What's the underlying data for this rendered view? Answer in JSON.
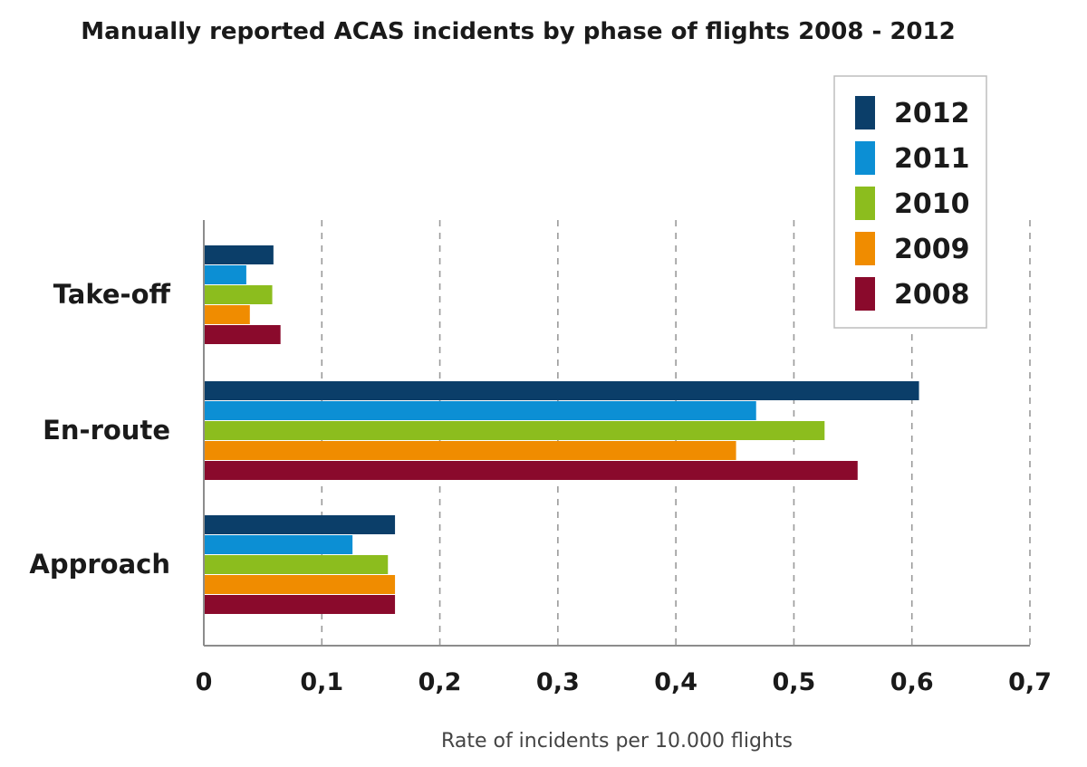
{
  "chart_data": {
    "type": "bar",
    "orientation": "horizontal",
    "title": "Manually reported ACAS incidents by phase of flights 2008 - 2012",
    "xlabel": "Rate of incidents per 10.000 flights",
    "ylabel": "",
    "xlim": [
      0,
      0.7
    ],
    "x_ticks": [
      "0",
      "0,1",
      "0,2",
      "0,3",
      "0,4",
      "0,5",
      "0,6",
      "0,7"
    ],
    "x_tick_values": [
      0,
      0.1,
      0.2,
      0.3,
      0.4,
      0.5,
      0.6,
      0.7
    ],
    "grid": "vertical dashed",
    "legend_position": "top-right",
    "categories": [
      "Take-off",
      "En-route",
      "Approach"
    ],
    "series": [
      {
        "name": "2012",
        "color": "#0b3e69",
        "values": [
          0.059,
          0.606,
          0.162
        ]
      },
      {
        "name": "2011",
        "color": "#0c8fd4",
        "values": [
          0.036,
          0.468,
          0.126
        ]
      },
      {
        "name": "2010",
        "color": "#8cbd1e",
        "values": [
          0.058,
          0.526,
          0.156
        ]
      },
      {
        "name": "2009",
        "color": "#f08c00",
        "values": [
          0.039,
          0.451,
          0.162
        ]
      },
      {
        "name": "2008",
        "color": "#8a0a2c",
        "values": [
          0.065,
          0.554,
          0.162
        ]
      }
    ]
  }
}
